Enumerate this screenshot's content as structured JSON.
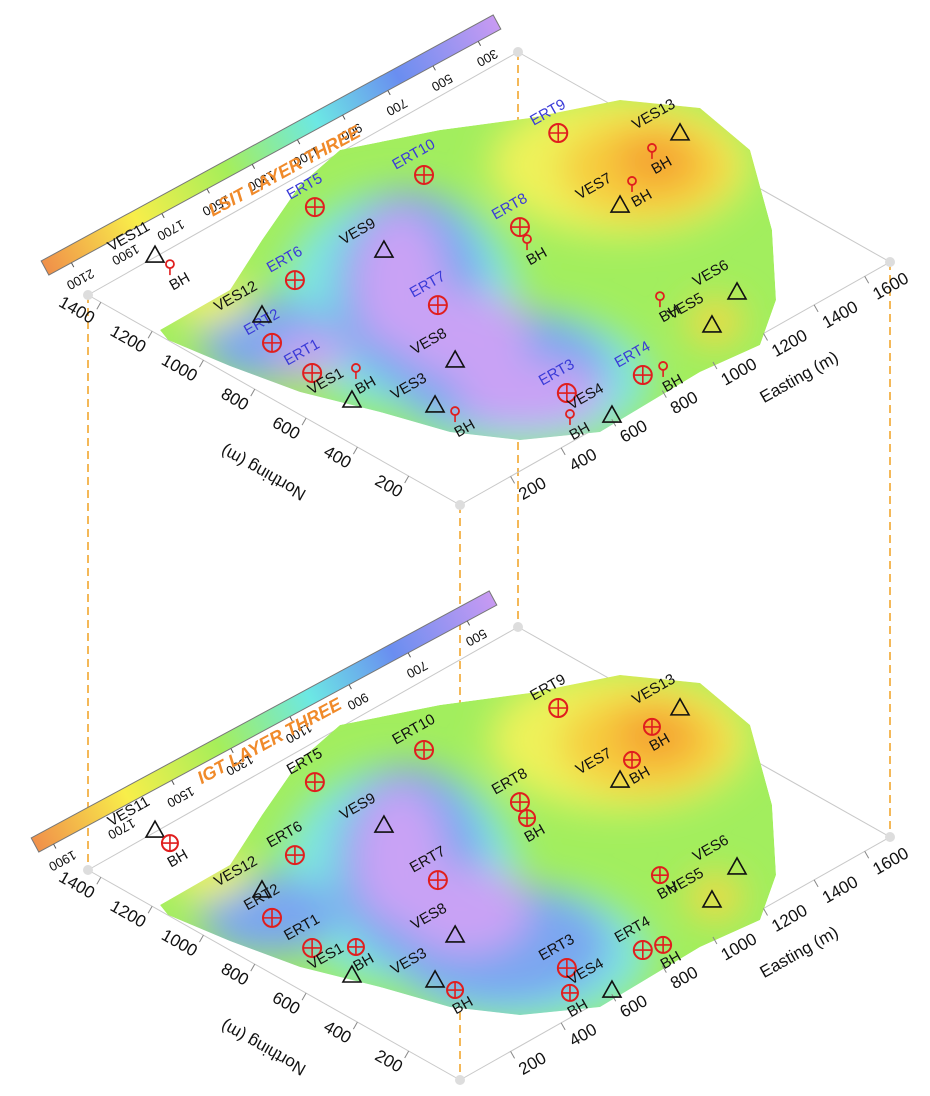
{
  "easting": {
    "label": "Easting (m)",
    "lim": [
      0,
      1700
    ],
    "ticks": [
      200,
      400,
      600,
      800,
      1000,
      1200,
      1400,
      1600
    ]
  },
  "northing": {
    "label": "Northing (m)",
    "lim": [
      0,
      1450
    ],
    "ticks": [
      200,
      400,
      600,
      800,
      1000,
      1200,
      1400
    ]
  },
  "panels": [
    {
      "title": "LSIT  LAYER THREE",
      "colorbar": {
        "lim": [
          2200,
          200
        ],
        "ticks": [
          2100,
          1900,
          1700,
          1500,
          1300,
          1100,
          900,
          700,
          500,
          300
        ]
      },
      "ert_label_color": "#3a3ad8"
    },
    {
      "title": "IGT  LAYER THREE",
      "colorbar": {
        "lim": [
          1950,
          400
        ],
        "ticks": [
          1900,
          1700,
          1500,
          1300,
          1100,
          900,
          700,
          500
        ]
      },
      "ert_label_color": "#111111"
    }
  ],
  "stations": [
    {
      "name": "ERT9",
      "kind": "ERT",
      "easting": 1496,
      "northing": 1092
    },
    {
      "name": "ERT10",
      "kind": "ERT",
      "easting": 1084,
      "northing": 1209
    },
    {
      "name": "ERT5",
      "kind": "ERT",
      "easting": 756,
      "northing": 1311
    },
    {
      "name": "ERT8",
      "kind": "ERT",
      "easting": 1091,
      "northing": 842
    },
    {
      "name": "ERT6",
      "kind": "ERT",
      "easting": 461,
      "northing": 1098
    },
    {
      "name": "ERT7",
      "kind": "ERT",
      "easting": 656,
      "northing": 733
    },
    {
      "name": "ERT2",
      "kind": "ERT",
      "easting": 196,
      "northing": 926
    },
    {
      "name": "ERT1",
      "kind": "ERT",
      "easting": 170,
      "northing": 744
    },
    {
      "name": "ERT3",
      "kind": "ERT",
      "easting": 603,
      "northing": 178
    },
    {
      "name": "ERT4",
      "kind": "ERT",
      "easting": 816,
      "northing": 92
    },
    {
      "name": "VES13",
      "kind": "VES",
      "easting": 1737,
      "northing": 855
    },
    {
      "name": "VES7",
      "kind": "VES",
      "easting": 1366,
      "northing": 723
    },
    {
      "name": "VES9",
      "kind": "VES",
      "easting": 742,
      "northing": 1028
    },
    {
      "name": "VES11",
      "kind": "VES",
      "easting": 272,
      "northing": 1457
    },
    {
      "name": "VES12",
      "kind": "VES",
      "easting": 274,
      "northing": 1042
    },
    {
      "name": "VES8",
      "kind": "VES",
      "easting": 498,
      "northing": 510
    },
    {
      "name": "VES1",
      "kind": "VES",
      "easting": 154,
      "northing": 573
    },
    {
      "name": "VES3",
      "kind": "VES",
      "easting": 301,
      "northing": 394
    },
    {
      "name": "VES4",
      "kind": "VES",
      "easting": 615,
      "northing": 14
    },
    {
      "name": "VES6",
      "kind": "VES",
      "easting": 1293,
      "northing": 195
    },
    {
      "name": "VES5",
      "kind": "VES",
      "easting": 1128,
      "northing": 130
    },
    {
      "name": "BH",
      "kind": "BH",
      "easting": 1615,
      "northing": 844
    },
    {
      "name": "BH",
      "kind": "BH",
      "easting": 1460,
      "northing": 769
    },
    {
      "name": "BH",
      "kind": "BH",
      "easting": 1049,
      "northing": 773
    },
    {
      "name": "BH",
      "kind": "BH",
      "easting": 256,
      "northing": 1383
    },
    {
      "name": "BH",
      "kind": "BH",
      "easting": 260,
      "northing": 662
    },
    {
      "name": "BH",
      "kind": "BH",
      "easting": 305,
      "northing": 320
    },
    {
      "name": "BH",
      "kind": "BH",
      "easting": 522,
      "northing": 86
    },
    {
      "name": "BH",
      "kind": "BH",
      "easting": 874,
      "northing": 70
    },
    {
      "name": "BH",
      "kind": "BH",
      "easting": 1112,
      "northing": 317
    }
  ]
}
